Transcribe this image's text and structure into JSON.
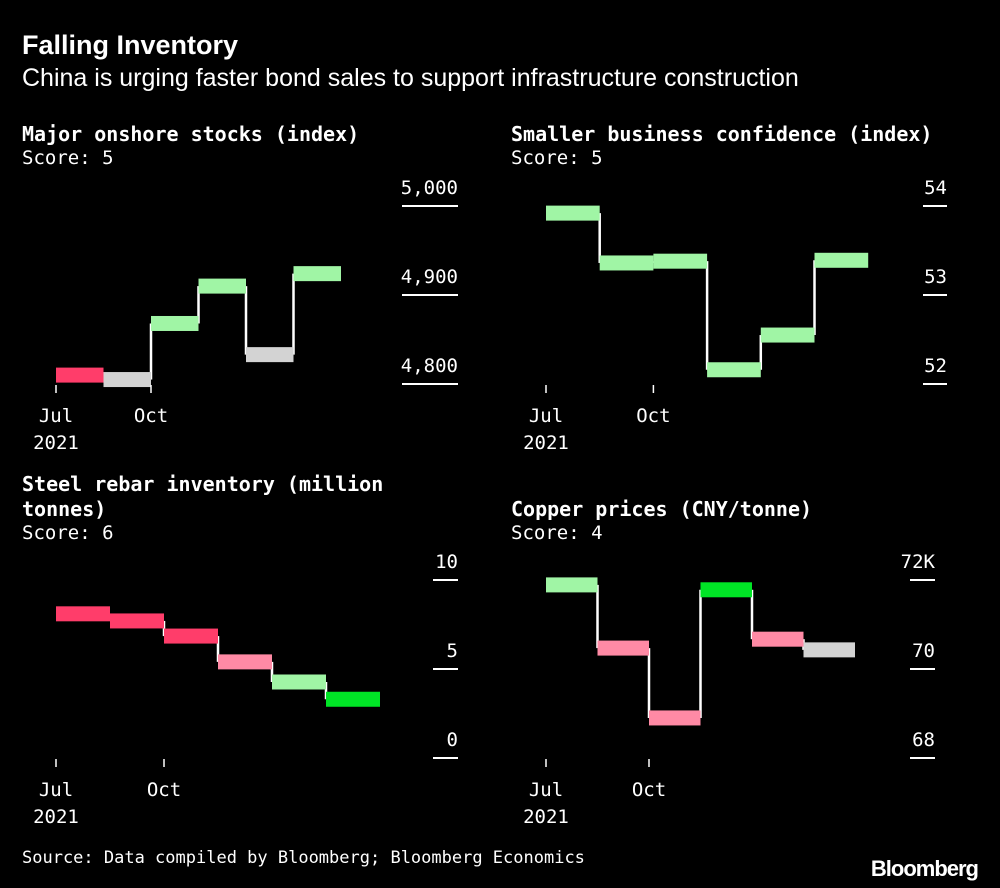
{
  "header": {
    "title": "Falling Inventory",
    "subtitle": "China is urging faster bond sales to support infrastructure construction"
  },
  "footer": {
    "source": "Source: Data compiled by Bloomberg; Bloomberg Economics",
    "logo": "Bloomberg"
  },
  "colors": {
    "background": "#000000",
    "strong_up": "#00e526",
    "up": "#a0f5a5",
    "neutral": "#d3d3d3",
    "down": "#ff8aa5",
    "strong_down": "#ff3d6a",
    "connector": "#ffffff"
  },
  "chart_data": [
    {
      "type": "step",
      "title": "Major onshore stocks (index)",
      "score": "Score: 5",
      "x_ticks": [
        "Jul",
        "Oct"
      ],
      "x_year": "2021",
      "y_ticks": [
        "4,800",
        "4,900",
        "5,000"
      ],
      "y_tick_values": [
        4800,
        4900,
        5000
      ],
      "ylim": [
        4800,
        5000
      ],
      "values": [
        4810,
        4805,
        4868,
        4910,
        4833,
        4924
      ],
      "bar_colors": [
        "strong_down",
        "neutral",
        "up",
        "up",
        "neutral",
        "up"
      ]
    },
    {
      "type": "step",
      "title": "Smaller business confidence (index)",
      "score": "Score: 5",
      "x_ticks": [
        "Jul",
        "Oct"
      ],
      "x_year": "2021",
      "y_ticks": [
        "52",
        "53",
        "54"
      ],
      "y_tick_values": [
        52,
        53,
        54
      ],
      "ylim": [
        52,
        54
      ],
      "values": [
        53.92,
        53.36,
        53.38,
        52.16,
        52.55,
        53.39
      ],
      "bar_colors": [
        "up",
        "up",
        "up",
        "up",
        "up",
        "up"
      ]
    },
    {
      "type": "step",
      "title": "Steel rebar inventory (million tonnes)",
      "title_lines": [
        "Steel rebar inventory (million",
        "tonnes)"
      ],
      "score": "Score: 6",
      "x_ticks": [
        "Jul",
        "Oct"
      ],
      "x_year": "2021",
      "y_ticks": [
        "0",
        "5",
        "10"
      ],
      "y_tick_values": [
        0,
        5,
        10
      ],
      "ylim": [
        0,
        10
      ],
      "values": [
        8.1,
        7.7,
        6.85,
        5.4,
        4.27,
        3.3
      ],
      "bar_colors": [
        "strong_down",
        "strong_down",
        "strong_down",
        "down",
        "up",
        "strong_up"
      ]
    },
    {
      "type": "step",
      "title": "Copper prices (CNY/tonne)",
      "score": "Score: 4",
      "x_ticks": [
        "Jul",
        "Oct"
      ],
      "x_year": "2021",
      "y_ticks": [
        "68",
        "70",
        "72K"
      ],
      "y_tick_values": [
        68,
        70,
        72
      ],
      "ylim": [
        68,
        72
      ],
      "values": [
        71.89,
        70.47,
        68.9,
        71.78,
        70.67,
        70.43
      ],
      "bar_colors": [
        "up",
        "down",
        "down",
        "strong_up",
        "down",
        "neutral"
      ]
    }
  ]
}
